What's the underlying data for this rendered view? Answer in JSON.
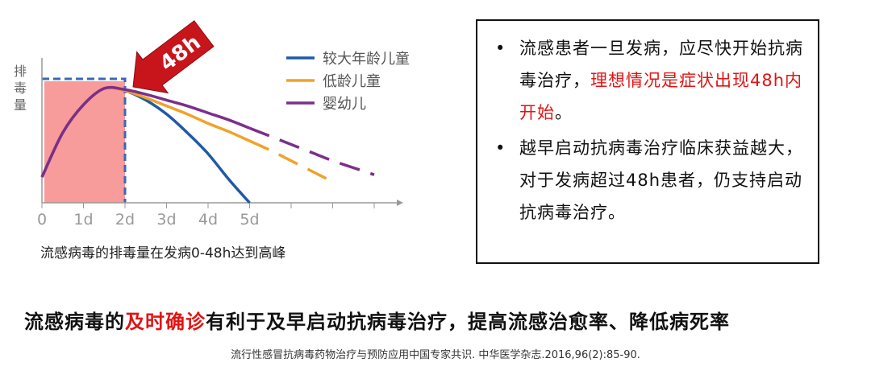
{
  "chart_data": {
    "type": "line",
    "ylabel": "排\n毒\n量",
    "x_ticks": [
      "0",
      "1d",
      "2d",
      "3d",
      "4d",
      "5d"
    ],
    "xlim": [
      0,
      8.5
    ],
    "ylim": [
      0,
      1
    ],
    "highlight_window": {
      "from": 0,
      "to": 2,
      "label": "48h",
      "fill": "#f89b9b",
      "arrow_color": "#c8151b"
    },
    "series": [
      {
        "name": "较大年龄儿童",
        "color": "#1f5aa6",
        "dashed_after": null,
        "x": [
          0,
          0.5,
          1,
          1.5,
          2,
          2.5,
          3,
          3.5,
          4,
          4.5,
          5
        ],
        "y": [
          0.22,
          0.6,
          0.84,
          0.98,
          0.96,
          0.88,
          0.76,
          0.6,
          0.42,
          0.2,
          0.0
        ]
      },
      {
        "name": "低龄儿童",
        "color": "#f0a22a",
        "dashed_after": 5,
        "x": [
          0,
          0.5,
          1,
          1.5,
          2,
          2.5,
          3,
          3.5,
          4,
          4.5,
          5,
          5.5,
          6,
          6.5,
          7
        ],
        "y": [
          0.22,
          0.6,
          0.84,
          0.98,
          0.96,
          0.9,
          0.83,
          0.76,
          0.68,
          0.61,
          0.53,
          0.45,
          0.36,
          0.27,
          0.18
        ]
      },
      {
        "name": "婴幼儿",
        "color": "#7b2f8a",
        "dashed_after": 5,
        "x": [
          0,
          0.5,
          1,
          1.5,
          2,
          2.5,
          3,
          3.5,
          4,
          4.5,
          5,
          5.5,
          6,
          6.5,
          7,
          7.5,
          8
        ],
        "y": [
          0.22,
          0.6,
          0.84,
          0.98,
          0.97,
          0.93,
          0.88,
          0.83,
          0.77,
          0.71,
          0.64,
          0.57,
          0.5,
          0.43,
          0.36,
          0.3,
          0.24
        ]
      }
    ],
    "legend": "top-right",
    "caption": "流感病毒的排毒量在发病0-48h达到高峰"
  },
  "bullets": [
    {
      "parts": [
        {
          "text": "流感患者一旦发病，应尽快开始抗病毒治疗，",
          "red": false
        },
        {
          "text": "理想情况是症状出现48h内开始",
          "red": true
        },
        {
          "text": "。",
          "red": false
        }
      ]
    },
    {
      "parts": [
        {
          "text": "越早启动抗病毒治疗临床获益越大，对于发病超过48h患者，仍支持启动抗病毒治疗。",
          "red": false
        }
      ]
    }
  ],
  "conclusion": {
    "before": "流感病毒的",
    "highlight": "及时确诊",
    "after": "有利于及早启动抗病毒治疗，提高流感治愈率、降低病死率",
    "highlight_color": "#e11414"
  },
  "citation": "流行性感冒抗病毒药物治疗与预防应用中国专家共识. 中华医学杂志.2016,96(2):85-90."
}
